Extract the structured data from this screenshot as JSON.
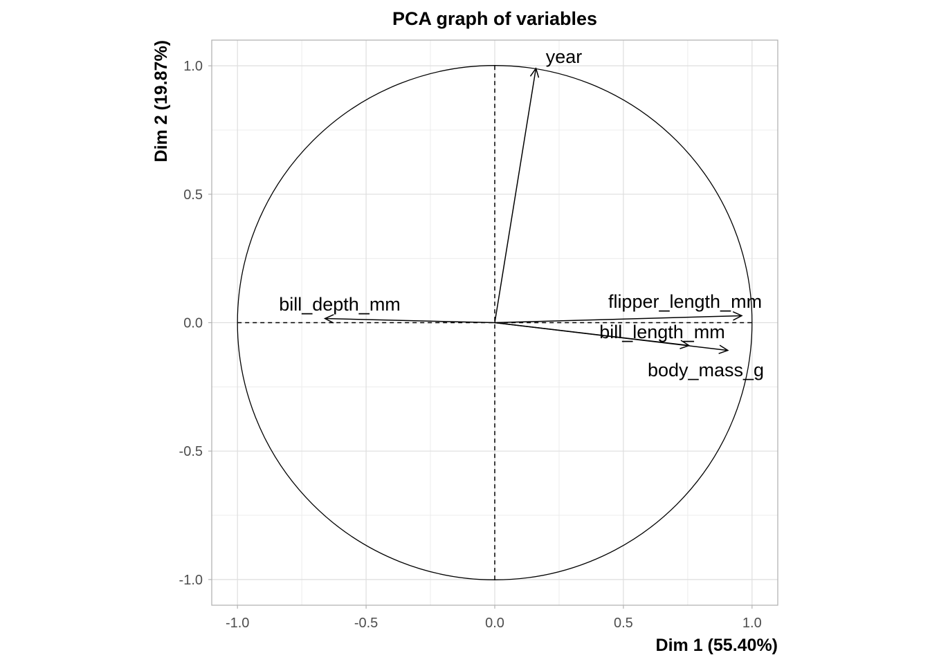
{
  "chart_data": {
    "type": "scatter",
    "subtype": "pca-correlation-circle",
    "title": "PCA graph of variables",
    "xlabel": "Dim 1 (55.40%)",
    "ylabel": "Dim 2 (19.87%)",
    "xlim": [
      -1.1,
      1.1
    ],
    "ylim": [
      -1.1,
      1.1
    ],
    "xticks": [
      -1.0,
      -0.5,
      0.0,
      0.5,
      1.0
    ],
    "xtick_labels": [
      "-1.0",
      "-0.5",
      "0.0",
      "0.5",
      "1.0"
    ],
    "yticks": [
      -1.0,
      -0.5,
      0.0,
      0.5,
      1.0
    ],
    "ytick_labels": [
      "-1.0",
      "-0.5",
      "0.0",
      "0.5",
      "1.0"
    ],
    "grid": true,
    "variables": [
      {
        "name": "year",
        "x": 0.16,
        "y": 0.99
      },
      {
        "name": "bill_depth_mm",
        "x": -0.66,
        "y": 0.016
      },
      {
        "name": "flipper_length_mm",
        "x": 0.96,
        "y": 0.027
      },
      {
        "name": "bill_length_mm",
        "x": 0.755,
        "y": -0.089
      },
      {
        "name": "body_mass_g",
        "x": 0.906,
        "y": -0.108
      }
    ]
  }
}
